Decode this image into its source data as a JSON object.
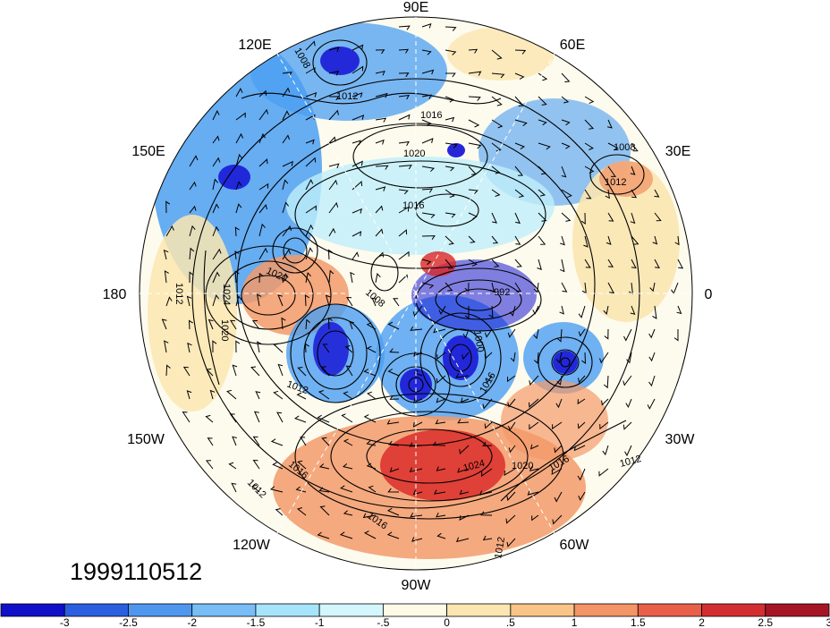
{
  "map": {
    "projection": "north-polar-stereographic",
    "field_colors": {
      "strong_negative": "#1a1ad6",
      "negative": "#4b9ff2",
      "weak_negative": "#bfeffa",
      "neutral": "#ffffff",
      "weak_positive": "#fbe6b0",
      "positive": "#f39a6a",
      "strong_positive": "#d92626"
    },
    "longitude_labels": [
      {
        "id": "90e",
        "text": "90E"
      },
      {
        "id": "120e",
        "text": "120E"
      },
      {
        "id": "60e",
        "text": "60E"
      },
      {
        "id": "150e",
        "text": "150E"
      },
      {
        "id": "30e",
        "text": "30E"
      },
      {
        "id": "180",
        "text": "180"
      },
      {
        "id": "0",
        "text": "0"
      },
      {
        "id": "150w",
        "text": "150W"
      },
      {
        "id": "30w",
        "text": "30W"
      },
      {
        "id": "120w",
        "text": "120W"
      },
      {
        "id": "60w",
        "text": "60W"
      },
      {
        "id": "90w",
        "text": "90W"
      }
    ],
    "contour_labels": [
      "1008",
      "1012",
      "1016",
      "1020",
      "1016",
      "1008",
      "1012",
      "1020",
      "1024",
      "1012",
      "1020",
      "1012",
      "1008",
      "992",
      "1000",
      "1016",
      "1024",
      "1020",
      "1016",
      "1012",
      "1016",
      "1012",
      "1016",
      "1012"
    ],
    "timestamp": "1999110512"
  },
  "colorbar": {
    "colors": [
      "#1010c8",
      "#2a5fe0",
      "#4f97ee",
      "#78bdf5",
      "#a6e4fb",
      "#d4f6fd",
      "#fdfbe6",
      "#fbe5b0",
      "#f8c487",
      "#f39566",
      "#e8604a",
      "#d32f32",
      "#a61526"
    ],
    "labels": [
      "-3",
      "-2.5",
      "-2",
      "-1.5",
      "-1",
      "-.5",
      "0",
      ".5",
      "1",
      "1.5",
      "2",
      "2.5",
      "3"
    ]
  }
}
